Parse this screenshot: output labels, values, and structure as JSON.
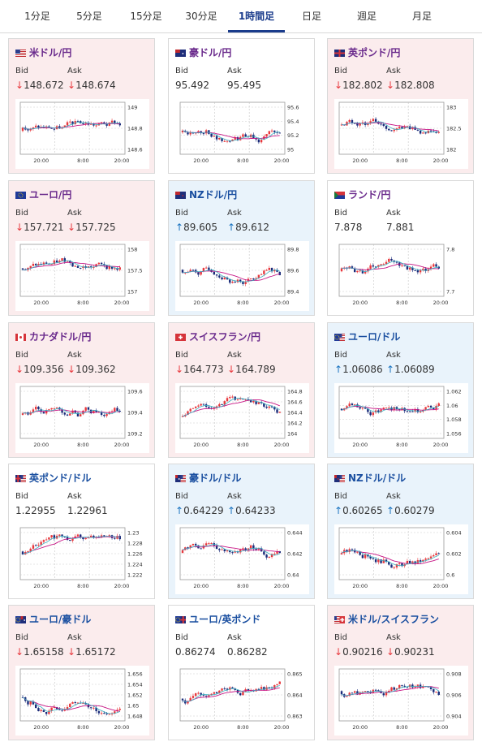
{
  "tabs": [
    "1分足",
    "5分足",
    "15分足",
    "30分足",
    "1時間足",
    "日足",
    "週足",
    "月足"
  ],
  "active_tab": 4,
  "bid_label": "Bid",
  "ask_label": "Ask",
  "colors": {
    "up_candle": "#e8383d",
    "down_candle": "#1a2b7a",
    "ma": "#c71585",
    "down_bg": "#fbeced",
    "up_bg": "#e9f3fb"
  },
  "cards": [
    {
      "name": "米ドル/円",
      "flag": "us",
      "trend": "down",
      "bid": "148.672",
      "ask": "148.674",
      "bid_arrow": "↓",
      "ask_arrow": "↓",
      "yticks": [
        "149",
        "148.8",
        "148.6"
      ],
      "xticks": [
        "20:00",
        "8:00",
        "20:00"
      ]
    },
    {
      "name": "豪ドル/円",
      "flag": "au",
      "trend": "flat",
      "bid": "95.492",
      "ask": "95.495",
      "bid_arrow": "",
      "ask_arrow": "",
      "yticks": [
        "95.6",
        "95.4",
        "95.2",
        "95"
      ],
      "xticks": [
        "20:00",
        "8:00",
        "20:00"
      ]
    },
    {
      "name": "英ポンド/円",
      "flag": "gb",
      "trend": "down",
      "bid": "182.802",
      "ask": "182.808",
      "bid_arrow": "↓",
      "ask_arrow": "↓",
      "yticks": [
        "183",
        "182.5",
        "182"
      ],
      "xticks": [
        "20:00",
        "8:00",
        "20:00"
      ]
    },
    {
      "name": "ユーロ/円",
      "flag": "eu",
      "trend": "down",
      "bid": "157.721",
      "ask": "157.725",
      "bid_arrow": "↓",
      "ask_arrow": "↓",
      "yticks": [
        "158",
        "157.5",
        "157"
      ],
      "xticks": [
        "20:00",
        "8:00",
        "20:00"
      ]
    },
    {
      "name": "NZドル/円",
      "flag": "nz",
      "trend": "up",
      "bid": "89.605",
      "ask": "89.612",
      "bid_arrow": "↑",
      "ask_arrow": "↑",
      "yticks": [
        "89.8",
        "89.6",
        "89.4"
      ],
      "xticks": [
        "20:00",
        "8:00",
        "20:00"
      ]
    },
    {
      "name": "ランド/円",
      "flag": "za",
      "trend": "flat",
      "bid": "7.878",
      "ask": "7.881",
      "bid_arrow": "",
      "ask_arrow": "",
      "yticks": [
        "7.8",
        "7.7"
      ],
      "xticks": [
        "20:00",
        "8:00",
        "20:00"
      ]
    },
    {
      "name": "カナダドル/円",
      "flag": "ca",
      "trend": "down",
      "bid": "109.356",
      "ask": "109.362",
      "bid_arrow": "↓",
      "ask_arrow": "↓",
      "yticks": [
        "109.6",
        "109.4",
        "109.2"
      ],
      "xticks": [
        "20:00",
        "8:00",
        "20:00"
      ]
    },
    {
      "name": "スイスフラン/円",
      "flag": "ch",
      "trend": "down",
      "bid": "164.773",
      "ask": "164.789",
      "bid_arrow": "↓",
      "ask_arrow": "↓",
      "yticks": [
        "164.8",
        "164.6",
        "164.4",
        "164.2",
        "164"
      ],
      "xticks": [
        "20:00",
        "8:00",
        "20:00"
      ]
    },
    {
      "name": "ユーロ/ドル",
      "flag": "euus",
      "trend": "up",
      "bid": "1.06086",
      "ask": "1.06089",
      "bid_arrow": "↑",
      "ask_arrow": "↑",
      "yticks": [
        "1.062",
        "1.06",
        "1.058",
        "1.056"
      ],
      "xticks": [
        "20:00",
        "8:00",
        "20:00"
      ]
    },
    {
      "name": "英ポンド/ドル",
      "flag": "gbus",
      "trend": "flat",
      "bid": "1.22955",
      "ask": "1.22961",
      "bid_arrow": "",
      "ask_arrow": "",
      "yticks": [
        "1.23",
        "1.228",
        "1.226",
        "1.224",
        "1.222"
      ],
      "xticks": [
        "20:00",
        "8:00",
        "20:00"
      ]
    },
    {
      "name": "豪ドル/ドル",
      "flag": "auus",
      "trend": "up",
      "bid": "0.64229",
      "ask": "0.64233",
      "bid_arrow": "↑",
      "ask_arrow": "↑",
      "yticks": [
        "0.644",
        "0.642",
        "0.64"
      ],
      "xticks": [
        "20:00",
        "8:00",
        "20:00"
      ]
    },
    {
      "name": "NZドル/ドル",
      "flag": "nzus",
      "trend": "up",
      "bid": "0.60265",
      "ask": "0.60279",
      "bid_arrow": "↑",
      "ask_arrow": "↑",
      "yticks": [
        "0.604",
        "0.602",
        "0.6"
      ],
      "xticks": [
        "20:00",
        "8:00",
        "20:00"
      ]
    },
    {
      "name": "ユーロ/豪ドル",
      "flag": "euau",
      "trend": "down",
      "bid": "1.65158",
      "ask": "1.65172",
      "bid_arrow": "↓",
      "ask_arrow": "↓",
      "yticks": [
        "1.656",
        "1.654",
        "1.652",
        "1.65",
        "1.648"
      ],
      "xticks": [
        "20:00",
        "8:00",
        "20:00"
      ]
    },
    {
      "name": "ユーロ/英ポンド",
      "flag": "eugb",
      "trend": "flat",
      "bid": "0.86274",
      "ask": "0.86282",
      "bid_arrow": "",
      "ask_arrow": "",
      "yticks": [
        "0.865",
        "0.864",
        "0.863"
      ],
      "xticks": [
        "20:00",
        "8:00",
        "20:00"
      ]
    },
    {
      "name": "米ドル/スイスフラン",
      "flag": "usch",
      "trend": "down",
      "bid": "0.90216",
      "ask": "0.90231",
      "bid_arrow": "↓",
      "ask_arrow": "↓",
      "yticks": [
        "0.908",
        "0.906",
        "0.904"
      ],
      "xticks": [
        "20:00",
        "8:00",
        "20:00"
      ]
    }
  ]
}
